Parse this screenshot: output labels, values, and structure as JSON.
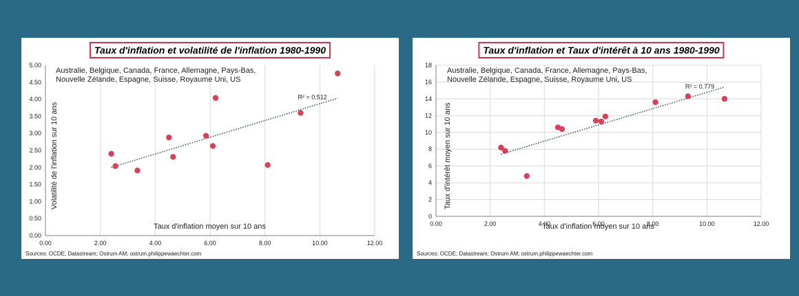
{
  "colors": {
    "background": "#2b6a86",
    "point": "#d9405a",
    "trend": "#2f5a52",
    "title_border": "#d2344d",
    "grid": "#d9d9d9"
  },
  "chart_data": [
    {
      "type": "scatter",
      "title": "Taux d'inflation et volatilité de l'inflation 1980-1990",
      "countries_line1": "Australie, Belgique, Canada, France, Allemagne, Pays-Bas,",
      "countries_line2": "Nouvelle Zélande, Espagne, Suisse, Royaume Uni, US",
      "xlabel": "Taux d'inflation moyen sur 10 ans",
      "ylabel": "Volatilité  de l'inflation sur 10 ans",
      "xlim": [
        0,
        12
      ],
      "ylim": [
        0,
        5
      ],
      "xticks": [
        0,
        2,
        4,
        6,
        8,
        10,
        12
      ],
      "yticks": [
        0,
        0.5,
        1,
        1.5,
        2,
        2.5,
        3,
        3.5,
        4,
        4.5,
        5
      ],
      "xtick_labels": [
        "0.00",
        "2.00",
        "4.00",
        "6.00",
        "8.00",
        "10.00",
        "12.00"
      ],
      "ytick_labels": [
        "0.00",
        "0.50",
        "1.00",
        "1.50",
        "2.00",
        "2.50",
        "3.00",
        "3.50",
        "4.00",
        "4.50",
        "5.00"
      ],
      "points": [
        {
          "x": 2.4,
          "y": 2.4
        },
        {
          "x": 2.55,
          "y": 2.04
        },
        {
          "x": 3.35,
          "y": 1.91
        },
        {
          "x": 4.5,
          "y": 2.88
        },
        {
          "x": 4.65,
          "y": 2.31
        },
        {
          "x": 5.85,
          "y": 2.93
        },
        {
          "x": 6.1,
          "y": 2.63
        },
        {
          "x": 6.2,
          "y": 4.04
        },
        {
          "x": 8.1,
          "y": 2.07
        },
        {
          "x": 9.3,
          "y": 3.6
        },
        {
          "x": 10.65,
          "y": 4.76
        }
      ],
      "trendline": {
        "x": [
          2.4,
          10.65
        ],
        "y": [
          2.0,
          4.03
        ]
      },
      "r2_label": "R² = 0.512",
      "r2_at": {
        "x": 9.2,
        "y": 4.0
      },
      "grid": "vertical",
      "source": "Sources: OCDE;  Datastream; Ostrum AM; ostrum.philippewaechter.com"
    },
    {
      "type": "scatter",
      "title": "Taux d'inflation et Taux d'intérêt à 10 ans 1980-1990",
      "countries_line1": "Australie, Belgique, Canada, France, Allemagne, Pays-Bas,",
      "countries_line2": "Nouvelle Zélande, Espagne, Suisse, Royaume Uni, US",
      "xlabel": "Taux d'inflation moyen sur 10 ans",
      "ylabel": "Taux d'intérêt moyen sur 10 ans",
      "xlim": [
        0,
        12
      ],
      "ylim": [
        0,
        18
      ],
      "xticks": [
        0,
        2,
        4,
        6,
        8,
        10,
        12
      ],
      "yticks": [
        0,
        2,
        4,
        6,
        8,
        10,
        12,
        14,
        16,
        18
      ],
      "xtick_labels": [
        "0.00",
        "2.00",
        "4.00",
        "6.00",
        "8.00",
        "10.00",
        "12.00"
      ],
      "ytick_labels": [
        "0",
        "2",
        "4",
        "6",
        "8",
        "10",
        "12",
        "14",
        "16",
        "18"
      ],
      "points": [
        {
          "x": 2.4,
          "y": 8.2
        },
        {
          "x": 2.55,
          "y": 7.8
        },
        {
          "x": 3.35,
          "y": 4.8
        },
        {
          "x": 4.5,
          "y": 10.6
        },
        {
          "x": 4.65,
          "y": 10.4
        },
        {
          "x": 5.9,
          "y": 11.4
        },
        {
          "x": 6.1,
          "y": 11.3
        },
        {
          "x": 6.25,
          "y": 11.9
        },
        {
          "x": 8.1,
          "y": 13.6
        },
        {
          "x": 9.3,
          "y": 14.3
        },
        {
          "x": 10.65,
          "y": 14.0
        }
      ],
      "trendline": {
        "x": [
          2.4,
          10.65
        ],
        "y": [
          7.4,
          15.4
        ]
      },
      "r2_label": "R² = 0.779",
      "r2_at": {
        "x": 9.2,
        "y": 15.2
      },
      "grid": "both",
      "source": "Sources: OCDE;  Datastream; Ostrum AM; ostrum.philippewaechter.com"
    }
  ]
}
